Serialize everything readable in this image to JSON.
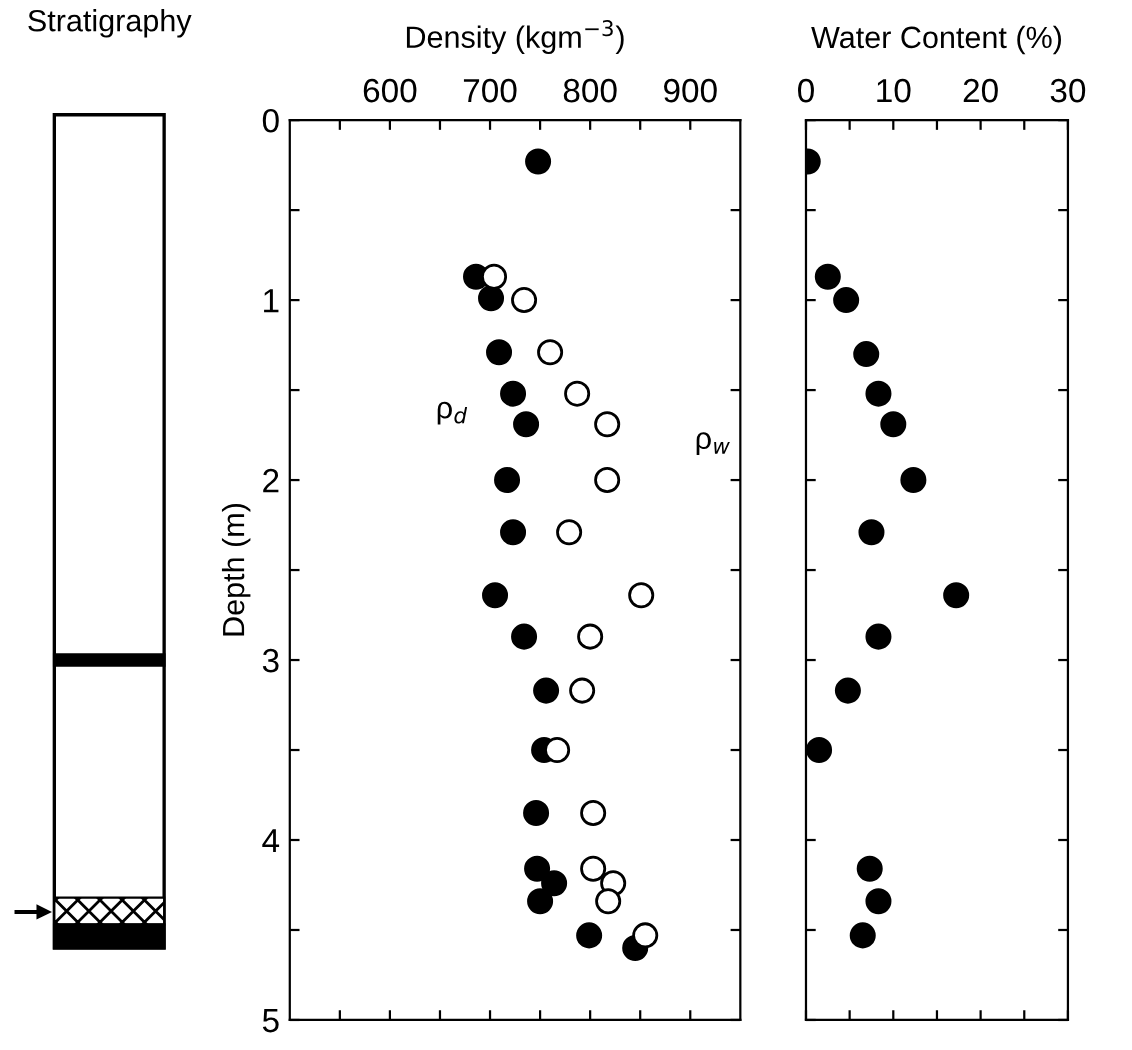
{
  "chart_data": [
    {
      "type": "other",
      "title": "Stratigraphy"
    },
    {
      "type": "scatter",
      "title": "Density (kgm$^{−3}$)",
      "ylabel": "Depth (m)",
      "marker": "circle",
      "grid": false,
      "legend": false,
      "xlim": [
        500,
        950
      ],
      "xticks": [
        {
          "value": 550,
          "label": null
        },
        600,
        {
          "value": 650,
          "label": null
        },
        700,
        {
          "value": 750,
          "label": null
        },
        800,
        {
          "value": 850,
          "label": null
        },
        900
      ],
      "ylim": [
        5,
        0
      ],
      "yticks": [
        0,
        {
          "value": 0.5,
          "label": null
        },
        1,
        {
          "value": 1.5,
          "label": null
        },
        2,
        {
          "value": 2.5,
          "label": null
        },
        3,
        {
          "value": 3.5,
          "label": null
        },
        4,
        {
          "value": 4.5,
          "label": null
        },
        5
      ],
      "series": [
        {
          "name": "ρ$_{d}$",
          "color": "#000000",
          "x": [
            748,
            686,
            701,
            709,
            723,
            736,
            717,
            723,
            705,
            734,
            756,
            754,
            746,
            747,
            764,
            750,
            799,
            845
          ],
          "values": [
            0.23,
            0.87,
            0.99,
            1.29,
            1.52,
            1.69,
            2.0,
            2.29,
            2.64,
            2.87,
            3.17,
            3.5,
            3.85,
            4.16,
            4.24,
            4.34,
            4.53,
            4.6
          ]
        },
        {
          "name": "ρ$_{w}$",
          "color": "#ffffff",
          "x": [
            704,
            734,
            760,
            787,
            817,
            817,
            779,
            851,
            800,
            792,
            767,
            803,
            803,
            823,
            818,
            855
          ],
          "values": [
            0.87,
            1.0,
            1.29,
            1.52,
            1.69,
            2.0,
            2.29,
            2.64,
            2.87,
            3.17,
            3.5,
            3.85,
            4.16,
            4.24,
            4.34,
            4.53
          ]
        }
      ]
    },
    {
      "type": "scatter",
      "title": "Water Content (%)",
      "marker": "circle",
      "grid": false,
      "legend": false,
      "tick_labels": "x",
      "xlim": [
        0,
        30
      ],
      "xticks": [
        0,
        {
          "value": 5,
          "label": null
        },
        10,
        {
          "value": 15,
          "label": null
        },
        20,
        {
          "value": 25,
          "label": null
        },
        30
      ],
      "ylim": [
        5,
        0
      ],
      "yticks": [
        0,
        {
          "value": 0.5,
          "label": null
        },
        1,
        {
          "value": 1.5,
          "label": null
        },
        2,
        {
          "value": 2.5,
          "label": null
        },
        3,
        {
          "value": 3.5,
          "label": null
        },
        4,
        {
          "value": 4.5,
          "label": null
        },
        5
      ],
      "series": [
        {
          "color": "#000000",
          "x": [
            0.2,
            2.5,
            4.6,
            6.9,
            8.3,
            10,
            12.3,
            7.5,
            17.2,
            8.3,
            4.8,
            1.5,
            7.3,
            8.3,
            6.5
          ],
          "values": [
            0.23,
            0.87,
            1.0,
            1.3,
            1.52,
            1.69,
            2.0,
            2.29,
            2.64,
            2.87,
            3.17,
            3.5,
            4.16,
            4.34,
            4.53
          ]
        }
      ]
    }
  ]
}
